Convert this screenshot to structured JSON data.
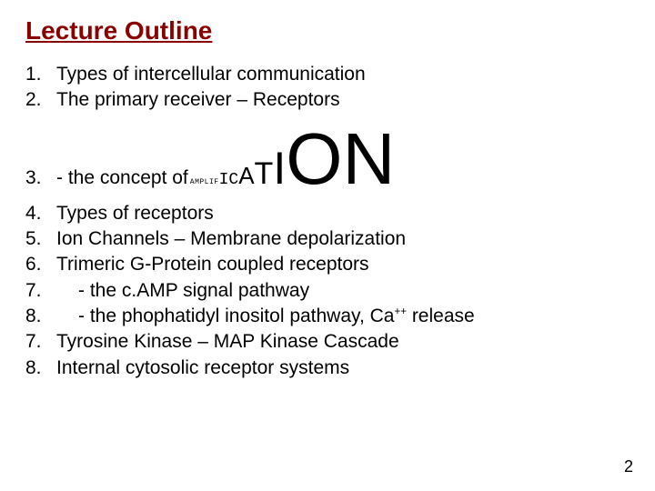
{
  "title": "Lecture Outline",
  "title_color": "#8b0000",
  "background_color": "#ffffff",
  "text_color": "#000000",
  "font_family": "Comic Sans MS",
  "page_number": "2",
  "items": {
    "i1": {
      "num": "1.",
      "text": "Types of intercellular communication"
    },
    "i2": {
      "num": "2.",
      "text": "The primary receiver – Receptors"
    },
    "i3": {
      "num": "3.",
      "prefix": "- the concept of ",
      "amp": {
        "p1": "AMPLIF",
        "p2": "IC",
        "p3": "A",
        "p4": "T",
        "p5": "I",
        "p6": "ON"
      }
    },
    "i4": {
      "num": "4.",
      "text": "Types of receptors"
    },
    "i5": {
      "num": "5.",
      "text": "Ion Channels – Membrane depolarization"
    },
    "i6": {
      "num": "6.",
      "text": "Trimeric G-Protein coupled receptors"
    },
    "i7": {
      "num": "7.",
      "text_pre": "    - the c.AMP signal pathway"
    },
    "i8": {
      "num": "8.",
      "text_pre": "    - the phophatidyl inositol pathway,  Ca",
      "sup": "++",
      "text_post": " release"
    },
    "i9": {
      "num": "7.",
      "text": "Tyrosine Kinase – MAP Kinase Cascade"
    },
    "i10": {
      "num": "8.",
      "text": "Internal cytosolic receptor systems"
    }
  }
}
